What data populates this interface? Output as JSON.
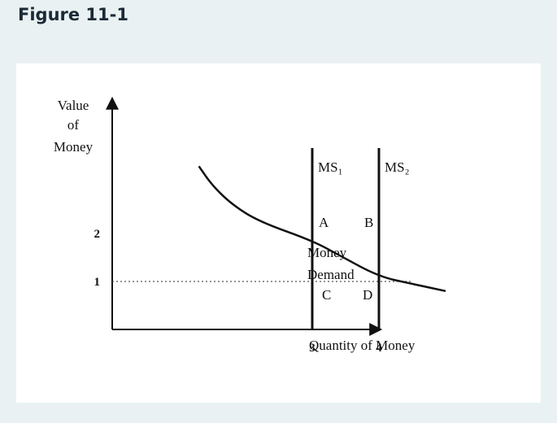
{
  "page_title": "Figure 11-1",
  "chart_data": {
    "type": "line",
    "title": "",
    "xlabel": "Quantity of Money",
    "ylabel_lines": [
      "Value",
      "of",
      "Money"
    ],
    "x_ticks": [
      "3",
      "4"
    ],
    "y_ticks": [
      "2",
      "1"
    ],
    "xlim": [
      0,
      5.2
    ],
    "ylim": [
      0,
      3.6
    ],
    "series": [
      {
        "name": "Money Demand",
        "label_lines": [
          "Money",
          "Demand"
        ],
        "points": [
          [
            1.3,
            3.4
          ],
          [
            1.5,
            3.0
          ],
          [
            1.8,
            2.6
          ],
          [
            2.2,
            2.25
          ],
          [
            3.0,
            1.85
          ],
          [
            3.4,
            1.55
          ],
          [
            4.0,
            1.1
          ],
          [
            4.5,
            0.95
          ],
          [
            5.0,
            0.8
          ]
        ]
      },
      {
        "name": "MS₁",
        "x": 3
      },
      {
        "name": "MS₂",
        "x": 4
      }
    ],
    "points": [
      {
        "label": "A",
        "x": 3,
        "y": 2
      },
      {
        "label": "B",
        "x": 4,
        "y": 2
      },
      {
        "label": "C",
        "x": 3,
        "y": 1
      },
      {
        "label": "D",
        "x": 4,
        "y": 1
      }
    ],
    "reference_line": {
      "y": 1,
      "style": "dotted"
    },
    "grid": false
  }
}
